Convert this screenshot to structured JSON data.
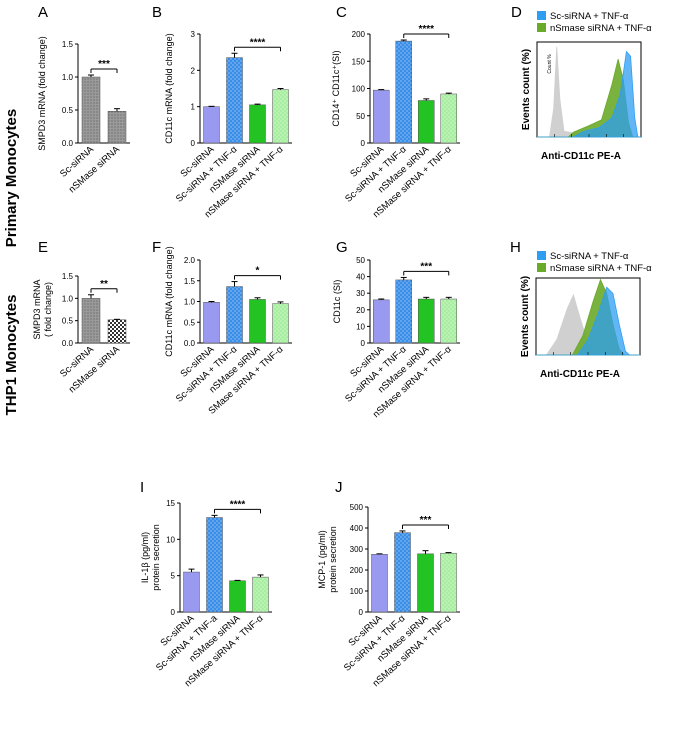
{
  "row_labels": {
    "primary": "Primary Monocytes",
    "thp1": "THP1 Monocytes"
  },
  "colors": {
    "sc_sirna": "#9999f0",
    "sc_tnf": "#3a8ee8",
    "nsmase": "#22c322",
    "nsmase_tnf": "#a8eea0",
    "grey_hatch": "#8e8e8e",
    "flow_blue": "#2e9ef2",
    "flow_green": "#6aaa2a",
    "flow_grey": "#d0d0d0"
  },
  "chart_data": [
    {
      "panel": "A",
      "type": "bar",
      "categories": [
        "Sc-siRNA",
        "nSMase siRNA"
      ],
      "values": [
        1.0,
        0.48
      ],
      "errors": [
        0.03,
        0.04
      ],
      "ylabel": "SMPD3 mRNA (fold change)",
      "ylim": [
        0,
        1.5
      ],
      "yticks": [
        "0.0",
        "0.5",
        "1.0",
        "1.5"
      ],
      "significance": {
        "from": 0,
        "to": 1,
        "label": "***"
      }
    },
    {
      "panel": "B",
      "type": "bar",
      "categories": [
        "Sc-siRNA",
        "Sc-siRNA + TNF-α",
        "nSMase siRNA",
        "nSMase siRNA + TNF-α"
      ],
      "values": [
        1.0,
        2.35,
        1.05,
        1.47
      ],
      "errors": [
        0.01,
        0.12,
        0.02,
        0.03
      ],
      "ylabel": "CD11c mRNA (fold change)",
      "ylim": [
        0,
        3
      ],
      "yticks": [
        "0",
        "1",
        "2",
        "3"
      ],
      "significance": {
        "from": 1,
        "to": 3,
        "label": "****"
      }
    },
    {
      "panel": "C",
      "type": "bar",
      "categories": [
        "Sc-siRNA",
        "Sc-siRNA + TNF-α",
        "nSMase siRNA",
        "nSMase siRNA + TNF-α"
      ],
      "values": [
        97,
        187,
        78,
        90
      ],
      "errors": [
        1,
        2,
        3,
        1.5
      ],
      "ylabel": "CD14⁺ CD11c⁺(SI)",
      "ylim": [
        0,
        200
      ],
      "yticks": [
        "0",
        "50",
        "100",
        "150",
        "200"
      ],
      "significance": {
        "from": 1,
        "to": 3,
        "label": "****"
      }
    },
    {
      "panel": "D",
      "type": "histogram-overlay",
      "legend": [
        "Sc-siRNA + TNF-α",
        "nSmase siRNA + TNF-α"
      ],
      "ylabel": "Events count (%)",
      "xlabel": "Anti-CD11c PE-A",
      "inner_ylabel": "Count %"
    },
    {
      "panel": "E",
      "type": "bar",
      "categories": [
        "Sc-siRNA",
        "nSMase siRNA"
      ],
      "values": [
        1.0,
        0.52
      ],
      "errors": [
        0.08,
        0.01
      ],
      "ylabel_lines": [
        "SMPD3 mRNA",
        "( fold change)"
      ],
      "ylim": [
        0,
        1.5
      ],
      "yticks": [
        "0.0",
        "0.5",
        "1.0",
        "1.5"
      ],
      "significance": {
        "from": 0,
        "to": 1,
        "label": "**"
      }
    },
    {
      "panel": "F",
      "type": "bar",
      "categories": [
        "Sc-siRNA",
        "Sc-siRNA + TNF-α",
        "nSMase siRNA",
        "SMase siRNA + TNF-α"
      ],
      "values": [
        0.98,
        1.36,
        1.05,
        0.95
      ],
      "errors": [
        0.02,
        0.12,
        0.04,
        0.04
      ],
      "ylabel": "CD11c mRNA (fold change)",
      "ylim": [
        0,
        2.0
      ],
      "yticks": [
        "0.0",
        "0.5",
        "1.0",
        "1.5",
        "2.0"
      ],
      "significance": {
        "from": 1,
        "to": 3,
        "label": "*"
      }
    },
    {
      "panel": "G",
      "type": "bar",
      "categories": [
        "Sc-siRNA",
        "Sc-siRNA + TNF-α",
        "nSMase siRNA",
        "nSMase siRNA + TNF-α"
      ],
      "values": [
        26,
        38,
        26.5,
        26.5
      ],
      "errors": [
        0.5,
        1.5,
        1,
        1
      ],
      "ylabel": "CD11c (SI)",
      "ylim": [
        0,
        50
      ],
      "yticks": [
        "0",
        "10",
        "20",
        "30",
        "40",
        "50"
      ],
      "significance": {
        "from": 1,
        "to": 3,
        "label": "***"
      }
    },
    {
      "panel": "H",
      "type": "histogram-overlay",
      "legend": [
        "Sc-siRNA + TNF-α",
        "nSmase siRNA + TNF-α"
      ],
      "ylabel": "Events count (%)",
      "xlabel": "Anti-CD11c PE-A"
    },
    {
      "panel": "I",
      "type": "bar",
      "categories": [
        "Sc-siRNA",
        "Sc-siRNA + TNF-a",
        "nSMase siRNA",
        "nSMase siRNA + TNF-α"
      ],
      "values": [
        5.5,
        13.0,
        4.3,
        4.8
      ],
      "errors": [
        0.4,
        0.3,
        0.05,
        0.3
      ],
      "ylabel_lines": [
        "IL-1β  (pg/ml)",
        "protein secretion"
      ],
      "ylim": [
        0,
        15
      ],
      "yticks": [
        "0",
        "5",
        "10",
        "15"
      ],
      "significance": {
        "from": 1,
        "to": 3,
        "label": "****"
      }
    },
    {
      "panel": "J",
      "type": "bar",
      "categories": [
        "Sc-siRNA",
        "Sc-siRNA + TNF-α",
        "nSMase siRNA",
        "nSMase siRNA + TNF-α"
      ],
      "values": [
        275,
        378,
        277,
        280
      ],
      "errors": [
        2,
        8,
        15,
        3
      ],
      "ylabel_lines": [
        "MCP-1  (pg/ml)",
        "protein secretion"
      ],
      "ylim": [
        0,
        500
      ],
      "yticks": [
        "0",
        "100",
        "200",
        "300",
        "400",
        "500"
      ],
      "significance": {
        "from": 1,
        "to": 3,
        "label": "***"
      }
    }
  ]
}
